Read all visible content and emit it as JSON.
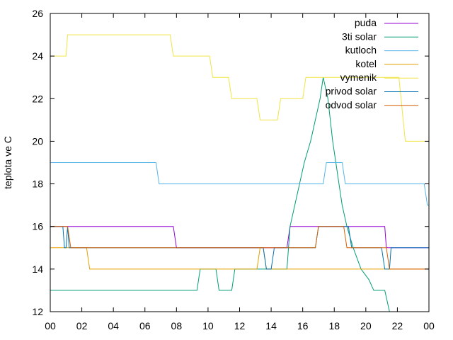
{
  "chart_data": {
    "type": "line",
    "title": "",
    "xlabel": "",
    "ylabel": "teplota ve C",
    "xlim": [
      0,
      24
    ],
    "ylim": [
      12,
      26
    ],
    "grid": false,
    "legend_placement": "top-right",
    "x_ticks": [
      "00",
      "02",
      "04",
      "06",
      "08",
      "10",
      "12",
      "14",
      "16",
      "18",
      "20",
      "22",
      "00"
    ],
    "y_ticks": [
      "12",
      "14",
      "16",
      "18",
      "20",
      "22",
      "24",
      "26"
    ],
    "series": [
      {
        "name": "puda",
        "color": "#9400d3",
        "points": [
          [
            0,
            16
          ],
          [
            7.8,
            16
          ],
          [
            8.0,
            15
          ],
          [
            15.0,
            15
          ],
          [
            15.2,
            16
          ],
          [
            21.2,
            16
          ],
          [
            21.3,
            15
          ],
          [
            24,
            15
          ]
        ]
      },
      {
        "name": "3ti solar",
        "color": "#009e73",
        "points": [
          [
            0,
            13
          ],
          [
            9.3,
            13
          ],
          [
            9.5,
            14
          ],
          [
            10.5,
            14
          ],
          [
            10.7,
            13
          ],
          [
            11.5,
            13
          ],
          [
            11.7,
            14
          ],
          [
            15.0,
            14
          ],
          [
            15.2,
            16
          ],
          [
            15.5,
            17
          ],
          [
            15.8,
            18
          ],
          [
            16.1,
            19
          ],
          [
            16.5,
            20
          ],
          [
            16.8,
            21
          ],
          [
            17.1,
            22
          ],
          [
            17.3,
            23
          ],
          [
            17.6,
            22
          ],
          [
            17.9,
            20
          ],
          [
            18.1,
            19
          ],
          [
            18.3,
            18
          ],
          [
            18.5,
            17
          ],
          [
            18.8,
            16
          ],
          [
            19.2,
            15
          ],
          [
            19.7,
            14
          ],
          [
            20.2,
            13.5
          ],
          [
            20.5,
            13
          ],
          [
            21.2,
            13
          ],
          [
            21.5,
            12
          ]
        ]
      },
      {
        "name": "kutloch",
        "color": "#56b4e9",
        "points": [
          [
            0,
            19
          ],
          [
            6.7,
            19
          ],
          [
            6.9,
            18
          ],
          [
            17.3,
            18
          ],
          [
            17.5,
            19
          ],
          [
            18.5,
            19
          ],
          [
            18.7,
            18
          ],
          [
            23.7,
            18
          ],
          [
            23.9,
            17
          ],
          [
            24,
            17
          ]
        ]
      },
      {
        "name": "kotel",
        "color": "#e69f00",
        "points": [
          [
            0,
            15
          ],
          [
            2.3,
            15
          ],
          [
            2.5,
            14
          ],
          [
            13.1,
            14
          ],
          [
            13.3,
            15
          ],
          [
            13.5,
            15
          ],
          [
            13.7,
            14
          ],
          [
            24,
            14
          ]
        ]
      },
      {
        "name": "vymenik",
        "color": "#f0e442",
        "points": [
          [
            0,
            24
          ],
          [
            1.0,
            24
          ],
          [
            1.1,
            25
          ],
          [
            7.6,
            25
          ],
          [
            7.8,
            24
          ],
          [
            10.1,
            24
          ],
          [
            10.3,
            23
          ],
          [
            11.3,
            23
          ],
          [
            11.5,
            22
          ],
          [
            13.1,
            22
          ],
          [
            13.3,
            21
          ],
          [
            14.4,
            21
          ],
          [
            14.6,
            22
          ],
          [
            16.0,
            22
          ],
          [
            16.2,
            23
          ],
          [
            22.1,
            23
          ],
          [
            22.5,
            20
          ],
          [
            24,
            20
          ]
        ]
      },
      {
        "name": "privod solar",
        "color": "#0072b2",
        "points": [
          [
            0,
            16
          ],
          [
            0.8,
            16
          ],
          [
            0.9,
            15
          ],
          [
            1.0,
            15
          ],
          [
            1.1,
            16
          ],
          [
            1.2,
            15
          ],
          [
            13.5,
            15
          ],
          [
            13.7,
            14
          ],
          [
            14.0,
            14
          ],
          [
            14.2,
            15
          ],
          [
            16.8,
            15
          ],
          [
            17.0,
            16
          ],
          [
            18.9,
            16
          ],
          [
            19.1,
            15
          ],
          [
            21.0,
            15
          ],
          [
            21.2,
            14
          ],
          [
            21.5,
            14
          ],
          [
            21.6,
            15
          ],
          [
            24,
            15
          ]
        ]
      },
      {
        "name": "odvod solar",
        "color": "#d55e00",
        "points": [
          [
            0,
            16
          ],
          [
            1.1,
            16
          ],
          [
            1.3,
            15
          ],
          [
            16.8,
            15
          ],
          [
            17.0,
            16
          ],
          [
            18.6,
            16
          ],
          [
            18.8,
            15
          ],
          [
            21.3,
            15
          ],
          [
            21.5,
            14
          ],
          [
            24,
            14
          ]
        ]
      }
    ]
  },
  "legend_colors": {
    "puda": "#9400d3",
    "3ti solar": "#009e73",
    "kutloch": "#56b4e9",
    "kotel": "#e69f00",
    "vymenik": "#f0e442",
    "privod solar": "#0072b2",
    "odvod solar": "#d55e00"
  }
}
